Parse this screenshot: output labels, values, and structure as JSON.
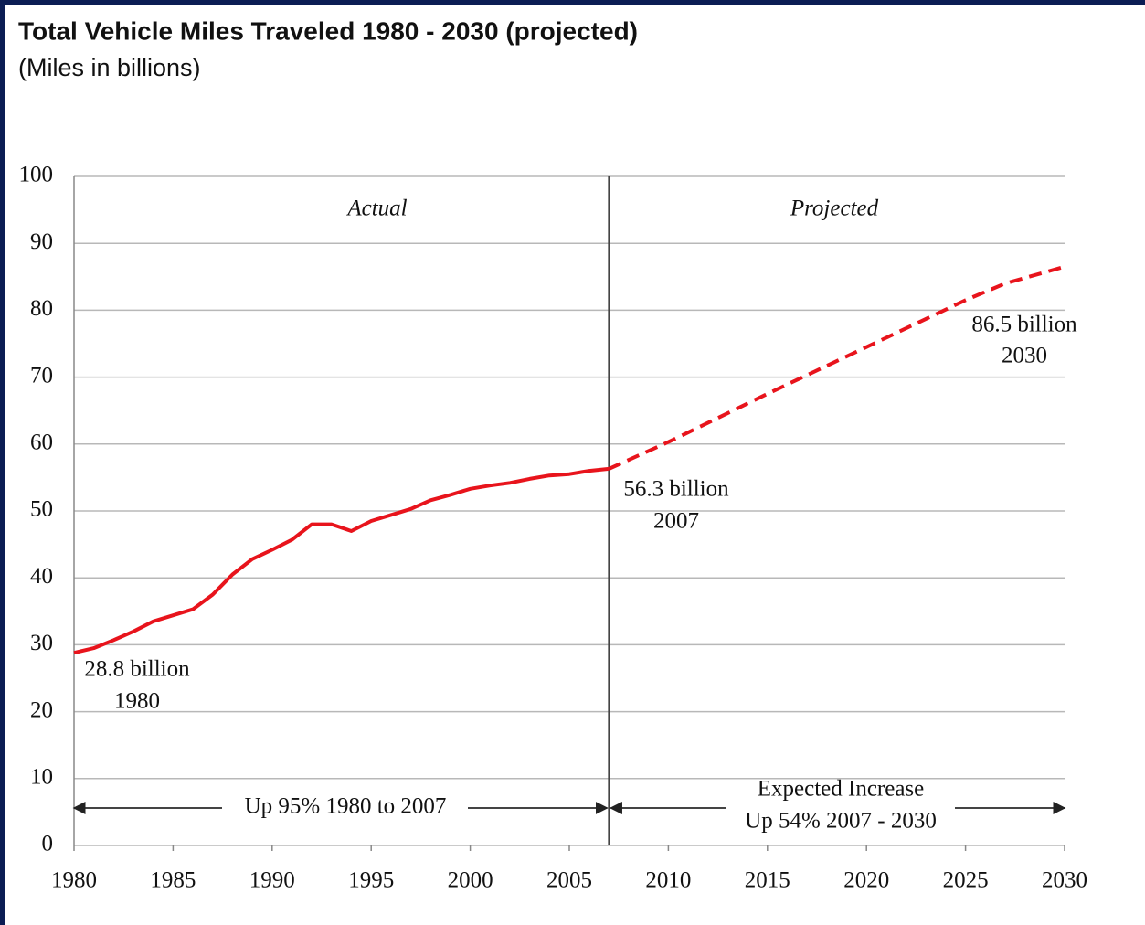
{
  "chart_data": {
    "type": "line",
    "title": "Total Vehicle Miles Traveled 1980 - 2030 (projected)",
    "subtitle": "(Miles in billions)",
    "xlim": [
      1980,
      2030
    ],
    "xticks": [
      1980,
      1985,
      1990,
      1995,
      2000,
      2005,
      2010,
      2015,
      2020,
      2025,
      2030
    ],
    "ylim": [
      0,
      100
    ],
    "yticks": [
      0,
      10,
      20,
      30,
      40,
      50,
      60,
      70,
      80,
      90,
      100
    ],
    "grid": true,
    "divider_x": 2007,
    "series": [
      {
        "name": "Actual",
        "color": "#e8141c",
        "style": "solid",
        "x": [
          1980,
          1981,
          1982,
          1983,
          1984,
          1985,
          1986,
          1987,
          1988,
          1989,
          1990,
          1991,
          1992,
          1993,
          1994,
          1995,
          1996,
          1997,
          1998,
          1999,
          2000,
          2001,
          2002,
          2003,
          2004,
          2005,
          2006,
          2007
        ],
        "values": [
          28.8,
          29.5,
          30.7,
          32.0,
          33.5,
          34.4,
          35.3,
          37.5,
          40.5,
          42.8,
          44.2,
          45.7,
          48.0,
          48.0,
          47.0,
          48.5,
          49.4,
          50.3,
          51.6,
          52.4,
          53.3,
          53.8,
          54.2,
          54.8,
          55.3,
          55.5,
          56.0,
          56.3
        ]
      },
      {
        "name": "Projected",
        "color": "#e8141c",
        "style": "dashed",
        "x": [
          2007,
          2010,
          2015,
          2020,
          2025,
          2027,
          2030
        ],
        "values": [
          56.3,
          60.3,
          67.5,
          74.5,
          81.5,
          84.0,
          86.5
        ]
      }
    ],
    "annotations": [
      "28.8 billion",
      "1980",
      "56.3 billion",
      "2007",
      "86.5 billion",
      "2030",
      "Up 95% 1980 to 2007",
      "Expected Increase",
      "Up 54% 2007 - 2030"
    ]
  }
}
